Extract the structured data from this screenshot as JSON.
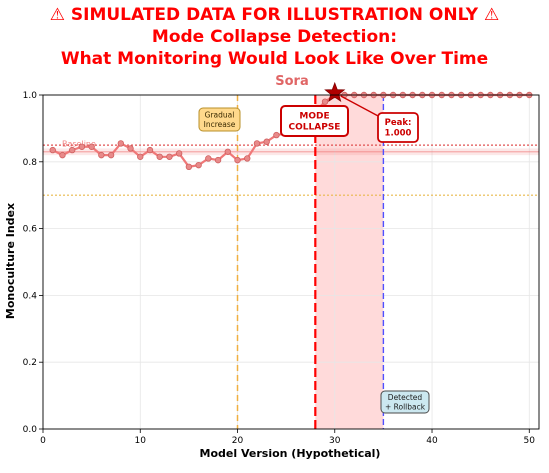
{
  "title": {
    "line1": "⚠ SIMULATED DATA FOR ILLUSTRATION ONLY ⚠",
    "line2": "Mode Collapse Detection:",
    "line3": "What Monitoring Would Look Like Over Time"
  },
  "colors": {
    "title": "#ff0000",
    "subtitle": "#e06666",
    "series": "#f07878",
    "series_point": "#e88a8a",
    "collapse_line": "#ff0000",
    "rollback_line": "#5050ff",
    "baseline": "#f08080",
    "threshold": "#e8b84a",
    "gradual_line": "#f0b040"
  },
  "chart_data": {
    "type": "line",
    "title": "Sora",
    "xlabel": "Model Version (Hypothetical)",
    "ylabel": "Monoculture Index",
    "xlim": [
      0,
      51
    ],
    "ylim": [
      0,
      1.0
    ],
    "xticks": [
      0,
      10,
      20,
      30,
      40,
      50
    ],
    "yticks": [
      0.0,
      0.2,
      0.4,
      0.6,
      0.8,
      1.0
    ],
    "grid": true,
    "x": [
      1,
      2,
      3,
      4,
      5,
      6,
      7,
      8,
      9,
      10,
      11,
      12,
      13,
      14,
      15,
      16,
      17,
      18,
      19,
      20,
      21,
      22,
      23,
      24,
      25,
      26,
      27,
      28,
      29,
      30,
      31,
      32,
      33,
      34,
      35,
      36,
      37,
      38,
      39,
      40,
      41,
      42,
      43,
      44,
      45,
      46,
      47,
      48,
      49,
      50
    ],
    "values": [
      0.835,
      0.82,
      0.835,
      0.845,
      0.845,
      0.82,
      0.82,
      0.855,
      0.84,
      0.815,
      0.835,
      0.815,
      0.815,
      0.825,
      0.785,
      0.79,
      0.81,
      0.805,
      0.83,
      0.805,
      0.81,
      0.855,
      0.86,
      0.88,
      0.885,
      0.9,
      0.93,
      0.95,
      0.98,
      1.0,
      1.0,
      1.0,
      1.0,
      1.0,
      1.0,
      1.0,
      1.0,
      1.0,
      1.0,
      1.0,
      1.0,
      1.0,
      1.0,
      1.0,
      1.0,
      1.0,
      1.0,
      1.0,
      1.0,
      1.0
    ],
    "baseline": 0.83,
    "baseline_label": "Baseline",
    "baseline_band": [
      0.82,
      0.84
    ],
    "upper_threshold": 0.85,
    "lower_threshold": 0.7,
    "gradual_x": 20,
    "collapse_x": 28,
    "rollback_x": 35,
    "peak": {
      "x": 30,
      "y": 1.0
    },
    "annotations": {
      "gradual": [
        "Gradual",
        "Increase"
      ],
      "collapse": [
        "MODE",
        "COLLAPSE"
      ],
      "peak": [
        "Peak:",
        "1.000"
      ],
      "rollback": [
        "Detected",
        "+ Rollback"
      ]
    }
  }
}
